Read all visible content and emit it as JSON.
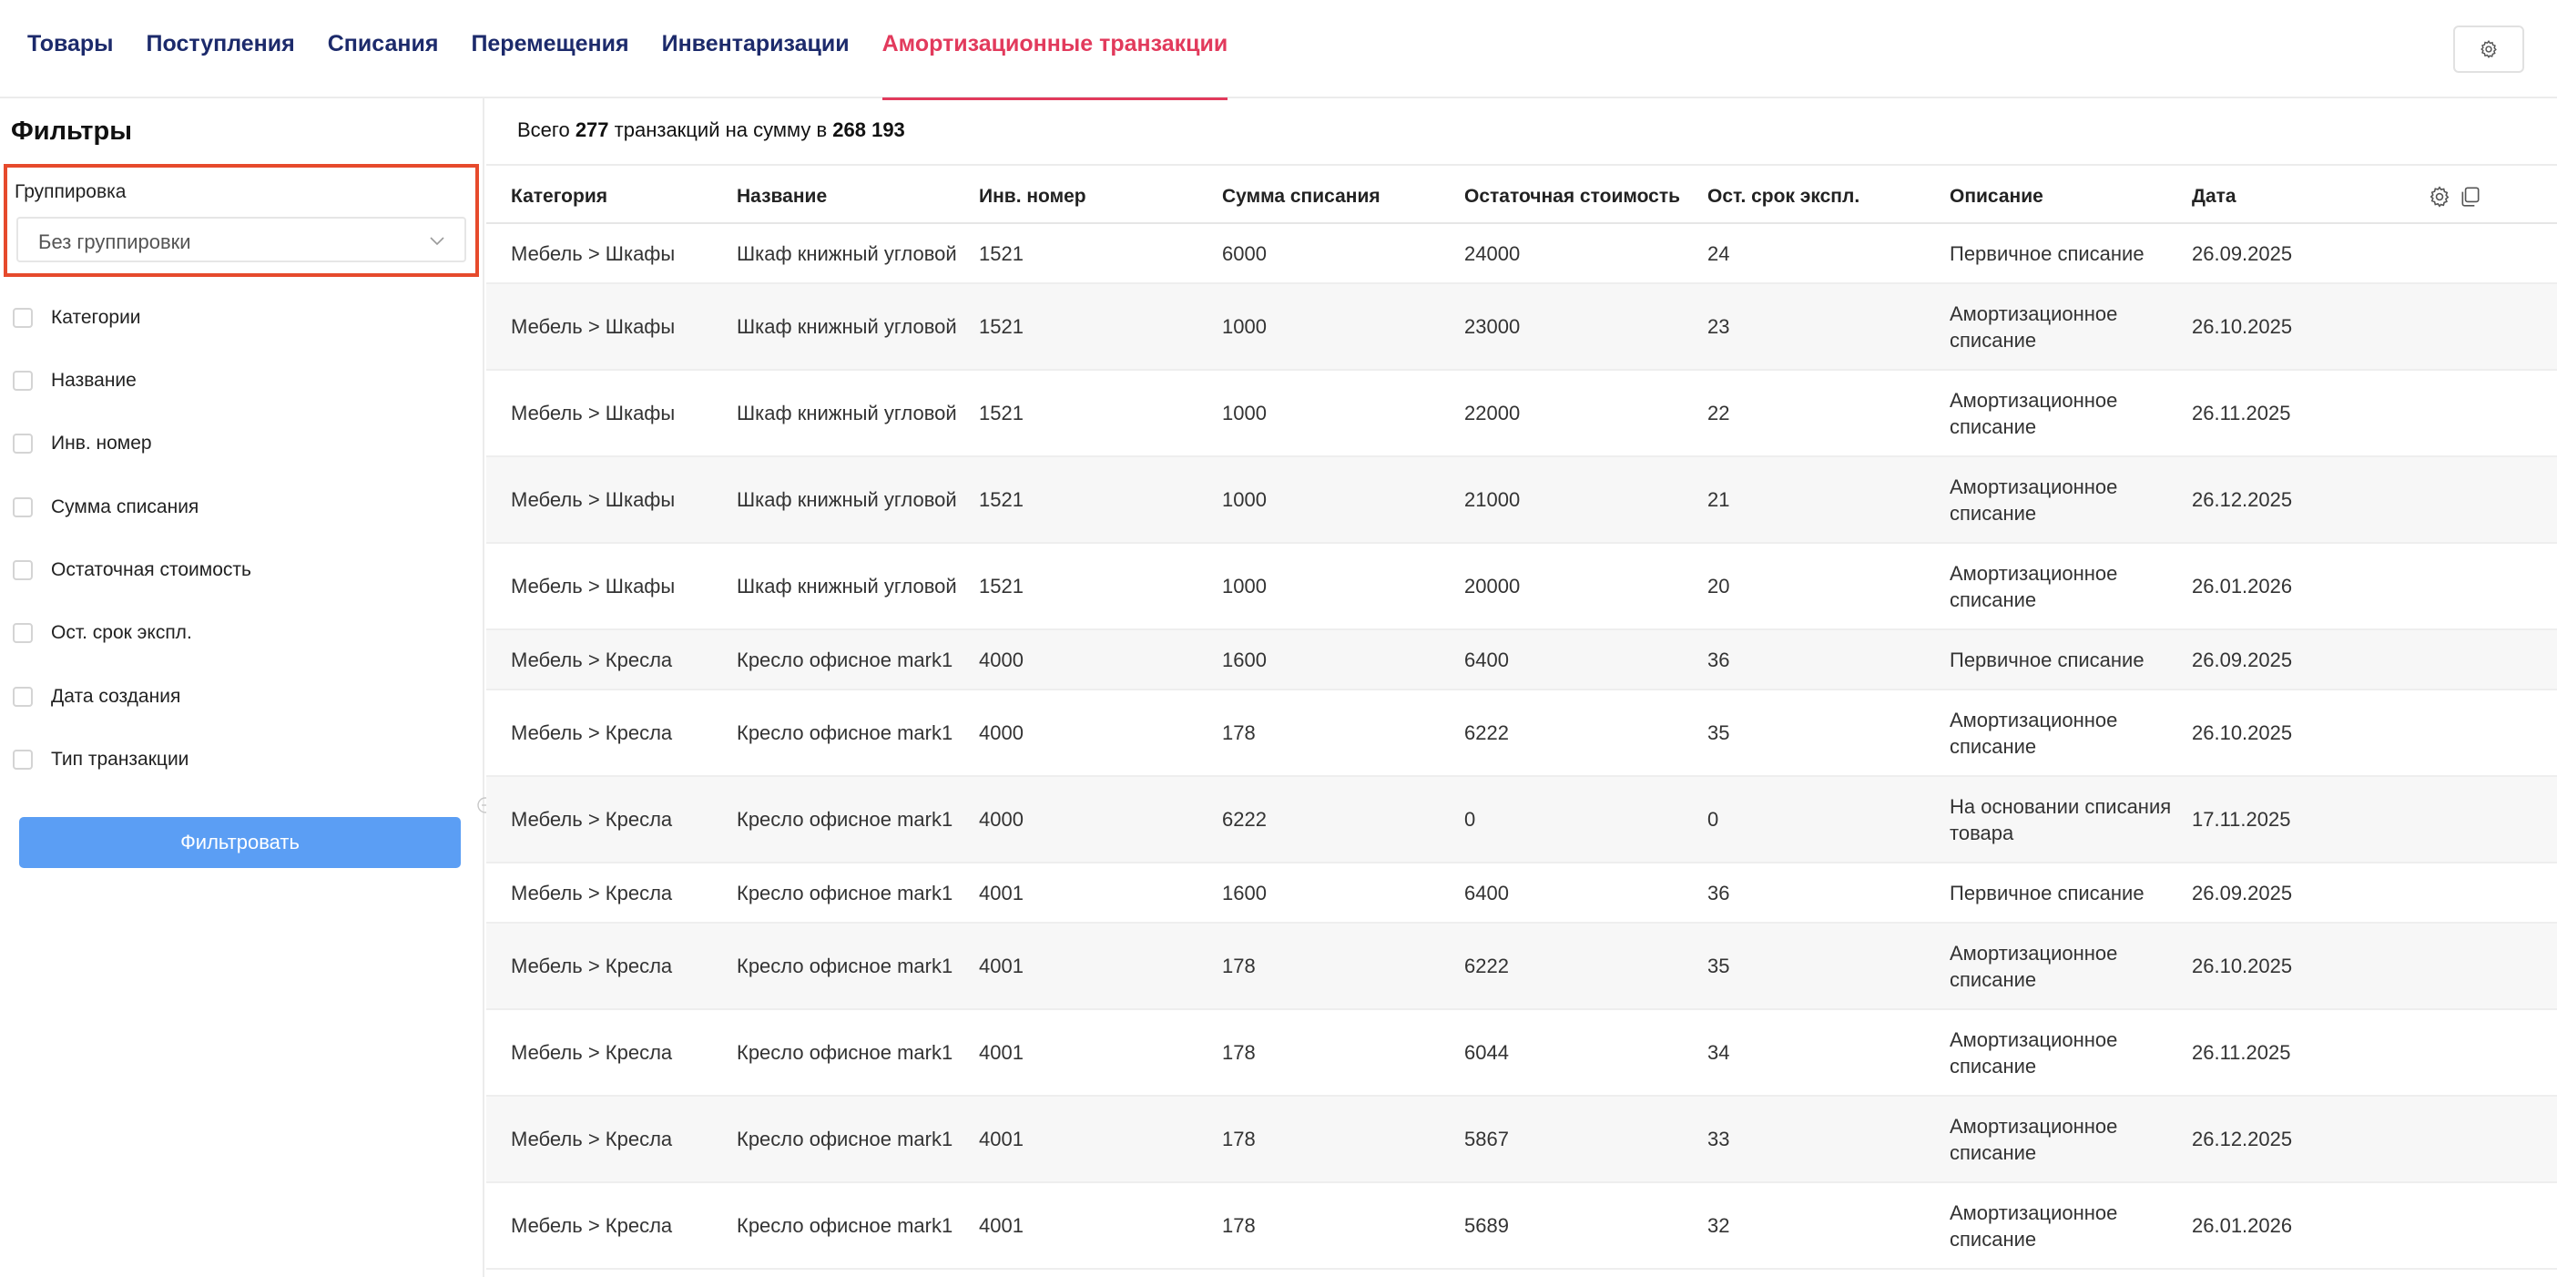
{
  "nav": {
    "tabs": [
      {
        "label": "Товары"
      },
      {
        "label": "Поступления"
      },
      {
        "label": "Списания"
      },
      {
        "label": "Перемещения"
      },
      {
        "label": "Инвентаризации"
      },
      {
        "label": "Амортизационные транзакции",
        "active": true
      }
    ],
    "settings_icon": "gear-icon"
  },
  "filters": {
    "title": "Фильтры",
    "grouping": {
      "label": "Группировка",
      "value": "Без группировки"
    },
    "items": [
      {
        "label": "Категории",
        "checked": false
      },
      {
        "label": "Название",
        "checked": false
      },
      {
        "label": "Инв. номер",
        "checked": false
      },
      {
        "label": "Сумма списания",
        "checked": false
      },
      {
        "label": "Остаточная стоимость",
        "checked": false
      },
      {
        "label": "Ост. срок экспл.",
        "checked": false
      },
      {
        "label": "Дата создания",
        "checked": false
      },
      {
        "label": "Тип транзакции",
        "checked": false
      }
    ],
    "button_label": "Фильтровать"
  },
  "summary": {
    "prefix": "Всего",
    "count": "277",
    "middle": "транзакций на сумму в",
    "total": "268 193"
  },
  "table": {
    "columns": [
      "Категория",
      "Название",
      "Инв. номер",
      "Сумма списания",
      "Остаточная стоимость",
      "Ост. срок экспл.",
      "Описание",
      "Дата"
    ],
    "header_icons": [
      "gear-icon",
      "copy-icon"
    ],
    "rows": [
      [
        "Мебель > Шкафы",
        "Шкаф книжный угловой",
        "1521",
        "6000",
        "24000",
        "24",
        "Первичное списание",
        "26.09.2025"
      ],
      [
        "Мебель > Шкафы",
        "Шкаф книжный угловой",
        "1521",
        "1000",
        "23000",
        "23",
        "Амортизационное списание",
        "26.10.2025"
      ],
      [
        "Мебель > Шкафы",
        "Шкаф книжный угловой",
        "1521",
        "1000",
        "22000",
        "22",
        "Амортизационное списание",
        "26.11.2025"
      ],
      [
        "Мебель > Шкафы",
        "Шкаф книжный угловой",
        "1521",
        "1000",
        "21000",
        "21",
        "Амортизационное списание",
        "26.12.2025"
      ],
      [
        "Мебель > Шкафы",
        "Шкаф книжный угловой",
        "1521",
        "1000",
        "20000",
        "20",
        "Амортизационное списание",
        "26.01.2026"
      ],
      [
        "Мебель > Кресла",
        "Кресло офисное mark1",
        "4000",
        "1600",
        "6400",
        "36",
        "Первичное списание",
        "26.09.2025"
      ],
      [
        "Мебель > Кресла",
        "Кресло офисное mark1",
        "4000",
        "178",
        "6222",
        "35",
        "Амортизационное списание",
        "26.10.2025"
      ],
      [
        "Мебель > Кресла",
        "Кресло офисное mark1",
        "4000",
        "6222",
        "0",
        "0",
        "На основании списания товара",
        "17.11.2025"
      ],
      [
        "Мебель > Кресла",
        "Кресло офисное mark1",
        "4001",
        "1600",
        "6400",
        "36",
        "Первичное списание",
        "26.09.2025"
      ],
      [
        "Мебель > Кресла",
        "Кресло офисное mark1",
        "4001",
        "178",
        "6222",
        "35",
        "Амортизационное списание",
        "26.10.2025"
      ],
      [
        "Мебель > Кресла",
        "Кресло офисное mark1",
        "4001",
        "178",
        "6044",
        "34",
        "Амортизационное списание",
        "26.11.2025"
      ],
      [
        "Мебель > Кресла",
        "Кресло офисное mark1",
        "4001",
        "178",
        "5867",
        "33",
        "Амортизационное списание",
        "26.12.2025"
      ],
      [
        "Мебель > Кресла",
        "Кресло офисное mark1",
        "4001",
        "178",
        "5689",
        "32",
        "Амортизационное списание",
        "26.01.2026"
      ]
    ]
  }
}
